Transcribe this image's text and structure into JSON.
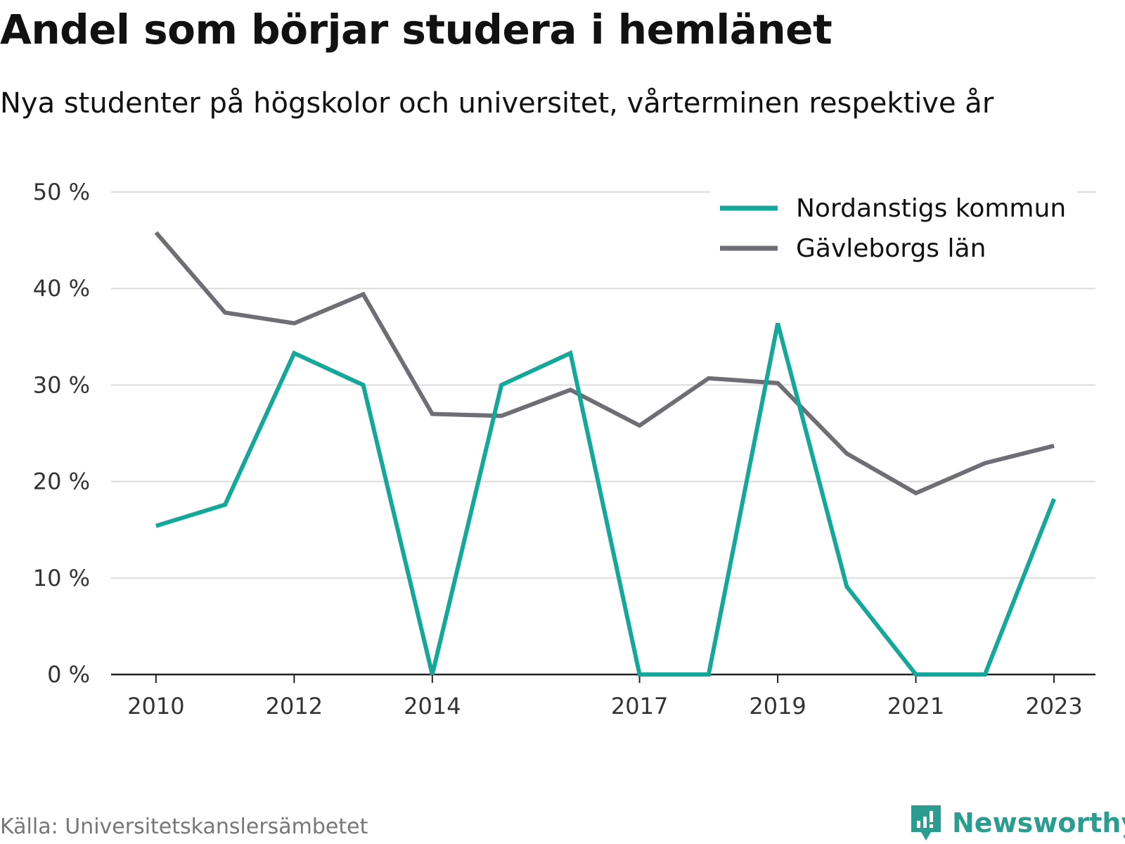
{
  "header": {
    "title": "Andel som börjar studera i hemlänet",
    "subtitle": "Nya studenter på högskolor och universitet, vårterminen respektive år"
  },
  "footer": {
    "source": "Källa: Universitetskanslersämbetet",
    "brand": "Newsworthy",
    "brand_icon": "newsworthy-logo-icon",
    "brand_color": "#2a9d90"
  },
  "chart_data": {
    "type": "line",
    "x": [
      2010,
      2011,
      2012,
      2013,
      2014,
      2015,
      2016,
      2017,
      2018,
      2019,
      2020,
      2021,
      2022,
      2023
    ],
    "xticks": [
      2010,
      2012,
      2014,
      2017,
      2019,
      2021,
      2023
    ],
    "yticks": [
      0,
      10,
      20,
      30,
      40,
      50
    ],
    "ytick_labels": [
      "0 %",
      "10 %",
      "20 %",
      "30 %",
      "40 %",
      "50 %"
    ],
    "ylim": [
      0,
      50
    ],
    "grid": true,
    "legend_position": "top-right",
    "series": [
      {
        "name": "Nordanstigs kommun",
        "color": "#13a89a",
        "values": [
          15.4,
          17.6,
          33.3,
          30.0,
          0,
          30.0,
          33.3,
          0,
          0,
          36.4,
          9.1,
          0,
          0,
          18.2
        ]
      },
      {
        "name": "Gävleborgs län",
        "color": "#6f6e74",
        "values": [
          45.8,
          37.5,
          36.4,
          39.4,
          27.0,
          26.8,
          29.5,
          25.8,
          30.7,
          30.2,
          22.9,
          18.8,
          21.9,
          23.7
        ]
      }
    ]
  }
}
